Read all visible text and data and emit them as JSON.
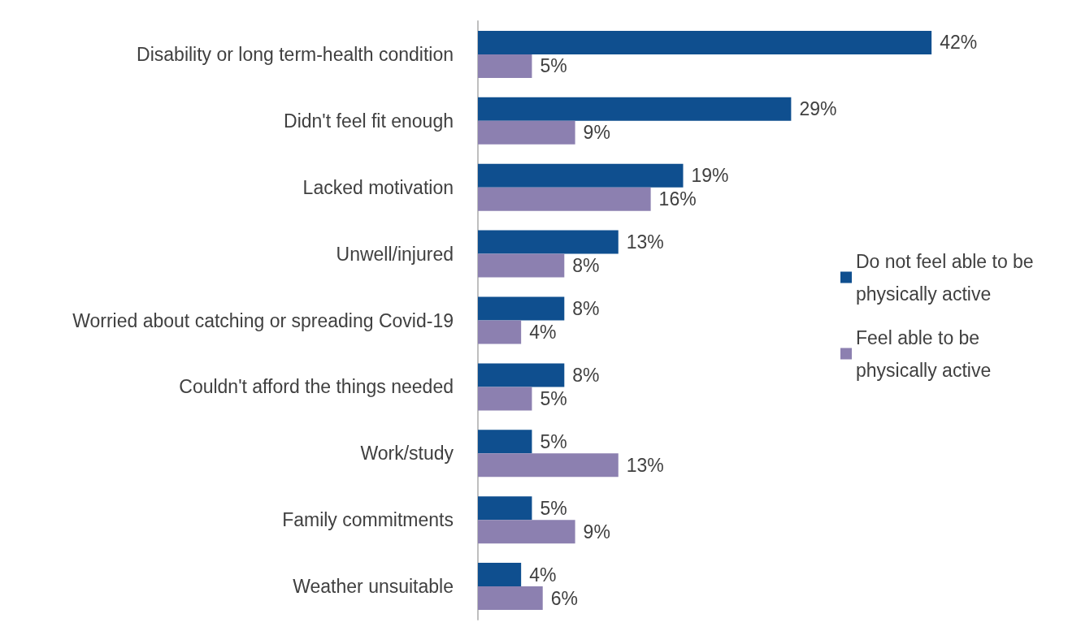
{
  "chart_data": {
    "type": "bar",
    "orientation": "horizontal",
    "categories": [
      "Disability or long term-health condition",
      "Didn't feel fit enough",
      "Lacked motivation",
      "Unwell/injured",
      "Worried about catching or spreading Covid-19",
      "Couldn't afford the things needed",
      "Work/study",
      "Family commitments",
      "Weather unsuitable"
    ],
    "series": [
      {
        "name": "Do not feel able to be physically active",
        "color": "#0f4f8f",
        "values": [
          42,
          29,
          19,
          13,
          8,
          8,
          5,
          5,
          4
        ],
        "value_labels": [
          "42%",
          "29%",
          "19%",
          "13%",
          "8%",
          "8%",
          "5%",
          "5%",
          "4%"
        ]
      },
      {
        "name": "Feel able to be physically active",
        "color": "#8c80b0",
        "values": [
          5,
          9,
          16,
          8,
          4,
          5,
          13,
          9,
          6
        ],
        "value_labels": [
          "5%",
          "9%",
          "16%",
          "8%",
          "4%",
          "5%",
          "13%",
          "9%",
          "6%"
        ]
      }
    ],
    "legend": "right"
  }
}
